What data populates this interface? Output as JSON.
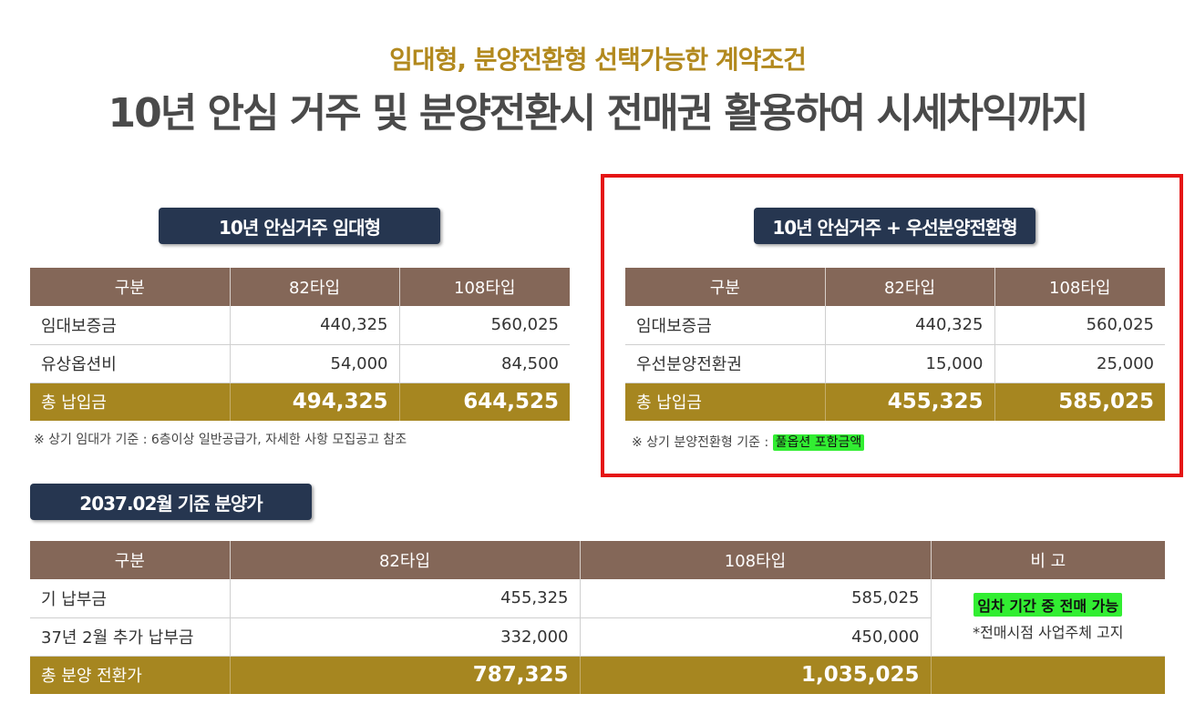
{
  "header": {
    "subtitle": "임대형, 분양전환형 선택가능한 계약조건",
    "title": "10년 안심 거주 및 분양전환시 전매권 활용하여 시세차익까지"
  },
  "rental": {
    "pill": "10년 안심거주 임대형",
    "columns": [
      "구분",
      "82타입",
      "108타입"
    ],
    "rows": [
      {
        "label": "임대보증금",
        "v82": "440,325",
        "v108": "560,025"
      },
      {
        "label": "유상옵션비",
        "v82": "54,000",
        "v108": "84,500"
      }
    ],
    "total": {
      "label": "총 납입금",
      "v82": "494,325",
      "v108": "644,525"
    },
    "note": "※ 상기 임대가 기준 : 6층이상 일반공급가, 자세한 사항 모집공고 참조"
  },
  "conversion": {
    "pill": "10년 안심거주 + 우선분양전환형",
    "columns": [
      "구분",
      "82타입",
      "108타입"
    ],
    "rows": [
      {
        "label": "임대보증금",
        "v82": "440,325",
        "v108": "560,025"
      },
      {
        "label": "우선분양전환권",
        "v82": "15,000",
        "v108": "25,000"
      }
    ],
    "total": {
      "label": "총 납입금",
      "v82": "455,325",
      "v108": "585,025"
    },
    "note_prefix": "※ 상기 분양전환형 기준 :",
    "note_highlight": "풀옵션 포함금액"
  },
  "sale": {
    "pill": "2037.02월 기준 분양가",
    "columns": [
      "구분",
      "82타입",
      "108타입",
      "비 고"
    ],
    "rows": [
      {
        "label": "기 납부금",
        "v82": "455,325",
        "v108": "585,025"
      },
      {
        "label": "37년 2월 추가 납부금",
        "v82": "332,000",
        "v108": "450,000"
      }
    ],
    "total": {
      "label": "총 분양 전환가",
      "v82": "787,325",
      "v108": "1,035,025"
    },
    "remark_highlight": "임차 기간 중 전매 가능",
    "remark_sub": "*전매시점 사업주체 고지"
  },
  "colors": {
    "accent_gold": "#b2891e",
    "header_brown": "#846758",
    "total_gold": "#a68620",
    "pill_navy": "#263650",
    "highlight_green": "#32ee32",
    "frame_red": "#e51515"
  }
}
